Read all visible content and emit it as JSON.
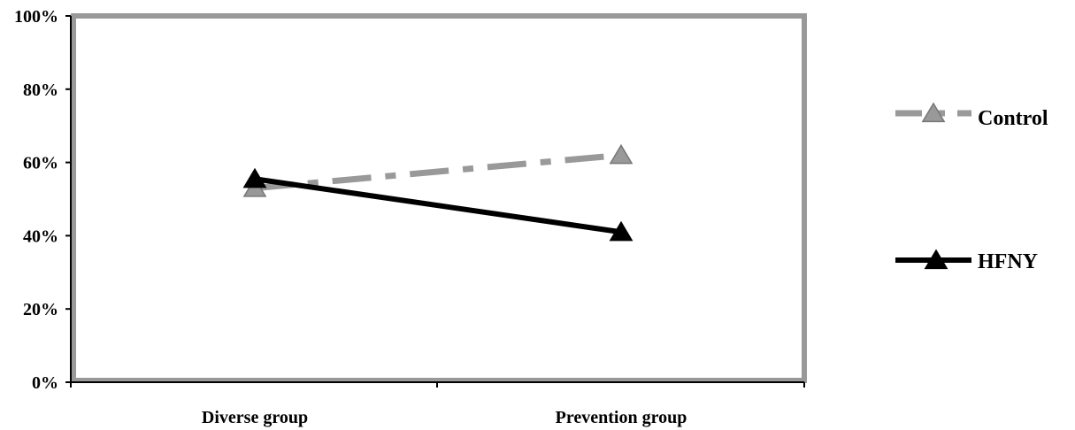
{
  "chart_data": {
    "type": "line",
    "categories": [
      "Diverse group",
      "Prevention group"
    ],
    "ylim": [
      0,
      100
    ],
    "y_ticks": [
      "0%",
      "20%",
      "40%",
      "60%",
      "80%",
      "100%"
    ],
    "y_tick_values": [
      0,
      20,
      40,
      60,
      80,
      100
    ],
    "grid": false,
    "legend_position": "right",
    "series": [
      {
        "name": "Control",
        "values": [
          53,
          62
        ],
        "color": "#999999",
        "line_style": "dash-dot",
        "marker": "triangle"
      },
      {
        "name": "HFNY",
        "values": [
          55.5,
          41
        ],
        "color": "#000000",
        "line_style": "solid",
        "marker": "triangle"
      }
    ],
    "plot_border_color": "#999999"
  }
}
